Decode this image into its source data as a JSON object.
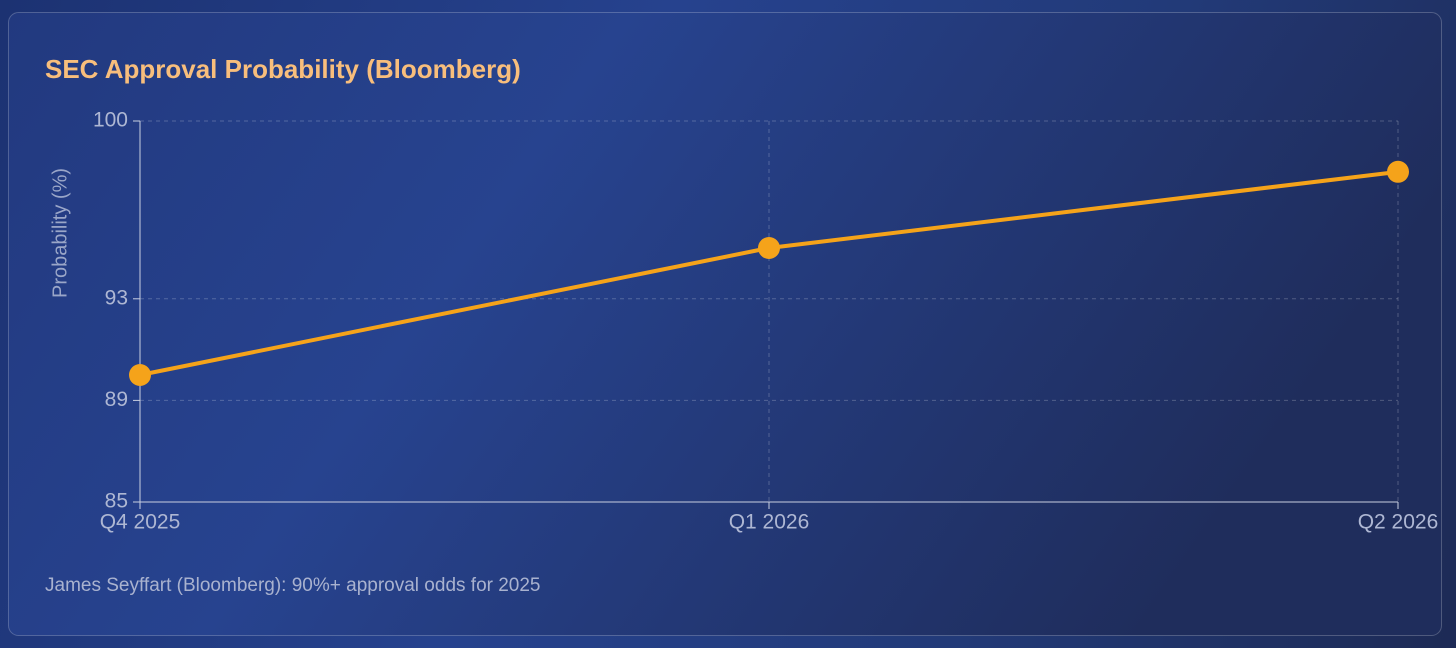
{
  "chart_data": {
    "type": "line",
    "title": "SEC Approval Probability (Bloomberg)",
    "y_label": "Probability (%)",
    "categories": [
      "Q4 2025",
      "Q1 2026",
      "Q2 2026"
    ],
    "values": [
      90,
      95,
      98
    ],
    "color": "#f5a31a",
    "ylim": [
      85,
      100
    ],
    "yticks": [
      85,
      89,
      93,
      100
    ],
    "grid": true,
    "footnote": "James Seyffart (Bloomberg): 90%+ approval odds for 2025"
  }
}
